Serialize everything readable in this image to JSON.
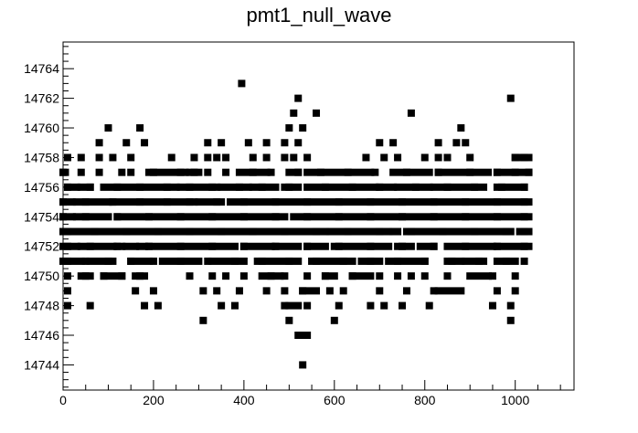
{
  "chart_data": {
    "type": "scatter",
    "title": "pmt1_null_wave",
    "xlabel": "",
    "ylabel": "",
    "xlim": [
      0,
      1130
    ],
    "ylim": [
      14742.3,
      14765.8
    ],
    "x_ticks": [
      0,
      200,
      400,
      600,
      800,
      1000
    ],
    "y_ticks": [
      14744,
      14746,
      14748,
      14750,
      14752,
      14754,
      14756,
      14758,
      14760,
      14762,
      14764
    ],
    "grid": false,
    "legend": false,
    "marker": "square",
    "marker_color": "#000000",
    "points": [
      {
        "x": 395,
        "y": 14763
      },
      {
        "x": 520,
        "y": 14762
      },
      {
        "x": 990,
        "y": 14762
      },
      {
        "x": 510,
        "y": 14761
      },
      {
        "x": 560,
        "y": 14761
      },
      {
        "x": 770,
        "y": 14761
      },
      {
        "x": 100,
        "y": 14760
      },
      {
        "x": 170,
        "y": 14760
      },
      {
        "x": 500,
        "y": 14760
      },
      {
        "x": 530,
        "y": 14760
      },
      {
        "x": 880,
        "y": 14760
      },
      {
        "x": 80,
        "y": 14759
      },
      {
        "x": 140,
        "y": 14759
      },
      {
        "x": 180,
        "y": 14759
      },
      {
        "x": 320,
        "y": 14759
      },
      {
        "x": 350,
        "y": 14759
      },
      {
        "x": 410,
        "y": 14759
      },
      {
        "x": 450,
        "y": 14759
      },
      {
        "x": 490,
        "y": 14759
      },
      {
        "x": 520,
        "y": 14759
      },
      {
        "x": 700,
        "y": 14759
      },
      {
        "x": 730,
        "y": 14759
      },
      {
        "x": 830,
        "y": 14759
      },
      {
        "x": 870,
        "y": 14759
      },
      {
        "x": 890,
        "y": 14759
      },
      {
        "x": 10,
        "y": 14758
      },
      {
        "x": 40,
        "y": 14758
      },
      {
        "x": 80,
        "y": 14758
      },
      {
        "x": 110,
        "y": 14758
      },
      {
        "x": 150,
        "y": 14758
      },
      {
        "x": 240,
        "y": 14758
      },
      {
        "x": 290,
        "y": 14758
      },
      {
        "x": 320,
        "y": 14758
      },
      {
        "x": 340,
        "y": 14758
      },
      {
        "x": 360,
        "y": 14758
      },
      {
        "x": 420,
        "y": 14758
      },
      {
        "x": 450,
        "y": 14758
      },
      {
        "x": 490,
        "y": 14758
      },
      {
        "x": 510,
        "y": 14758
      },
      {
        "x": 540,
        "y": 14758
      },
      {
        "x": 670,
        "y": 14758
      },
      {
        "x": 710,
        "y": 14758
      },
      {
        "x": 740,
        "y": 14758
      },
      {
        "x": 800,
        "y": 14758
      },
      {
        "x": 830,
        "y": 14758
      },
      {
        "x": 850,
        "y": 14758
      },
      {
        "x": 900,
        "y": 14758
      },
      {
        "x": 1000,
        "y": 14758
      },
      {
        "x": 1020,
        "y": 14758
      },
      {
        "x": 0,
        "y": 14757
      },
      {
        "x": 40,
        "y": 14757
      },
      {
        "x": 80,
        "y": 14757
      },
      {
        "x": 130,
        "y": 14757
      },
      {
        "x": 150,
        "y": 14757
      },
      {
        "x": 200,
        "y": 14757
      },
      {
        "x": 260,
        "y": 14757
      },
      {
        "x": 290,
        "y": 14757
      },
      {
        "x": 320,
        "y": 14757
      },
      {
        "x": 360,
        "y": 14757
      },
      {
        "x": 420,
        "y": 14757
      },
      {
        "x": 460,
        "y": 14757
      },
      {
        "x": 520,
        "y": 14757
      },
      {
        "x": 570,
        "y": 14757
      },
      {
        "x": 630,
        "y": 14757
      },
      {
        "x": 690,
        "y": 14757
      },
      {
        "x": 760,
        "y": 14757
      },
      {
        "x": 830,
        "y": 14757
      },
      {
        "x": 900,
        "y": 14757
      },
      {
        "x": 960,
        "y": 14757
      },
      {
        "x": 1000,
        "y": 14757
      },
      {
        "x": 1030,
        "y": 14757
      },
      {
        "x": 10,
        "y": 14756
      },
      {
        "x": 60,
        "y": 14756
      },
      {
        "x": 120,
        "y": 14756
      },
      {
        "x": 170,
        "y": 14756
      },
      {
        "x": 230,
        "y": 14756
      },
      {
        "x": 280,
        "y": 14756
      },
      {
        "x": 330,
        "y": 14756
      },
      {
        "x": 390,
        "y": 14756
      },
      {
        "x": 440,
        "y": 14756
      },
      {
        "x": 500,
        "y": 14756
      },
      {
        "x": 580,
        "y": 14756
      },
      {
        "x": 640,
        "y": 14756
      },
      {
        "x": 700,
        "y": 14756
      },
      {
        "x": 780,
        "y": 14756
      },
      {
        "x": 850,
        "y": 14756
      },
      {
        "x": 910,
        "y": 14756
      },
      {
        "x": 970,
        "y": 14756
      },
      {
        "x": 1020,
        "y": 14756
      },
      {
        "x": 0,
        "y": 14755
      },
      {
        "x": 50,
        "y": 14755
      },
      {
        "x": 110,
        "y": 14755
      },
      {
        "x": 170,
        "y": 14755
      },
      {
        "x": 230,
        "y": 14755
      },
      {
        "x": 280,
        "y": 14755
      },
      {
        "x": 340,
        "y": 14755
      },
      {
        "x": 400,
        "y": 14755
      },
      {
        "x": 470,
        "y": 14755
      },
      {
        "x": 540,
        "y": 14755
      },
      {
        "x": 610,
        "y": 14755
      },
      {
        "x": 680,
        "y": 14755
      },
      {
        "x": 750,
        "y": 14755
      },
      {
        "x": 820,
        "y": 14755
      },
      {
        "x": 890,
        "y": 14755
      },
      {
        "x": 960,
        "y": 14755
      },
      {
        "x": 1020,
        "y": 14755
      },
      {
        "x": 0,
        "y": 14754
      },
      {
        "x": 50,
        "y": 14754
      },
      {
        "x": 120,
        "y": 14754
      },
      {
        "x": 190,
        "y": 14754
      },
      {
        "x": 260,
        "y": 14754
      },
      {
        "x": 330,
        "y": 14754
      },
      {
        "x": 400,
        "y": 14754
      },
      {
        "x": 470,
        "y": 14754
      },
      {
        "x": 540,
        "y": 14754
      },
      {
        "x": 610,
        "y": 14754
      },
      {
        "x": 680,
        "y": 14754
      },
      {
        "x": 750,
        "y": 14754
      },
      {
        "x": 820,
        "y": 14754
      },
      {
        "x": 890,
        "y": 14754
      },
      {
        "x": 960,
        "y": 14754
      },
      {
        "x": 1020,
        "y": 14754
      },
      {
        "x": 10,
        "y": 14753
      },
      {
        "x": 70,
        "y": 14753
      },
      {
        "x": 140,
        "y": 14753
      },
      {
        "x": 210,
        "y": 14753
      },
      {
        "x": 280,
        "y": 14753
      },
      {
        "x": 350,
        "y": 14753
      },
      {
        "x": 420,
        "y": 14753
      },
      {
        "x": 490,
        "y": 14753
      },
      {
        "x": 560,
        "y": 14753
      },
      {
        "x": 630,
        "y": 14753
      },
      {
        "x": 700,
        "y": 14753
      },
      {
        "x": 770,
        "y": 14753
      },
      {
        "x": 840,
        "y": 14753
      },
      {
        "x": 910,
        "y": 14753
      },
      {
        "x": 980,
        "y": 14753
      },
      {
        "x": 1020,
        "y": 14753
      },
      {
        "x": 10,
        "y": 14752
      },
      {
        "x": 60,
        "y": 14752
      },
      {
        "x": 120,
        "y": 14752
      },
      {
        "x": 190,
        "y": 14752
      },
      {
        "x": 260,
        "y": 14752
      },
      {
        "x": 330,
        "y": 14752
      },
      {
        "x": 400,
        "y": 14752
      },
      {
        "x": 470,
        "y": 14752
      },
      {
        "x": 540,
        "y": 14752
      },
      {
        "x": 610,
        "y": 14752
      },
      {
        "x": 680,
        "y": 14752
      },
      {
        "x": 750,
        "y": 14752
      },
      {
        "x": 820,
        "y": 14752
      },
      {
        "x": 890,
        "y": 14752
      },
      {
        "x": 960,
        "y": 14752
      },
      {
        "x": 1020,
        "y": 14752
      },
      {
        "x": 10,
        "y": 14751
      },
      {
        "x": 50,
        "y": 14751
      },
      {
        "x": 100,
        "y": 14751
      },
      {
        "x": 150,
        "y": 14751
      },
      {
        "x": 200,
        "y": 14751
      },
      {
        "x": 260,
        "y": 14751
      },
      {
        "x": 320,
        "y": 14751
      },
      {
        "x": 380,
        "y": 14751
      },
      {
        "x": 440,
        "y": 14751
      },
      {
        "x": 500,
        "y": 14751
      },
      {
        "x": 560,
        "y": 14751
      },
      {
        "x": 620,
        "y": 14751
      },
      {
        "x": 680,
        "y": 14751
      },
      {
        "x": 740,
        "y": 14751
      },
      {
        "x": 800,
        "y": 14751
      },
      {
        "x": 860,
        "y": 14751
      },
      {
        "x": 920,
        "y": 14751
      },
      {
        "x": 980,
        "y": 14751
      },
      {
        "x": 1020,
        "y": 14751
      },
      {
        "x": 10,
        "y": 14750
      },
      {
        "x": 50,
        "y": 14750
      },
      {
        "x": 90,
        "y": 14750
      },
      {
        "x": 130,
        "y": 14750
      },
      {
        "x": 170,
        "y": 14750
      },
      {
        "x": 280,
        "y": 14750
      },
      {
        "x": 330,
        "y": 14750
      },
      {
        "x": 360,
        "y": 14750
      },
      {
        "x": 400,
        "y": 14750
      },
      {
        "x": 460,
        "y": 14750
      },
      {
        "x": 490,
        "y": 14750
      },
      {
        "x": 540,
        "y": 14750
      },
      {
        "x": 580,
        "y": 14750
      },
      {
        "x": 640,
        "y": 14750
      },
      {
        "x": 700,
        "y": 14750
      },
      {
        "x": 740,
        "y": 14750
      },
      {
        "x": 770,
        "y": 14750
      },
      {
        "x": 800,
        "y": 14750
      },
      {
        "x": 850,
        "y": 14750
      },
      {
        "x": 950,
        "y": 14750
      },
      {
        "x": 1000,
        "y": 14750
      },
      {
        "x": 10,
        "y": 14749
      },
      {
        "x": 160,
        "y": 14749
      },
      {
        "x": 200,
        "y": 14749
      },
      {
        "x": 310,
        "y": 14749
      },
      {
        "x": 340,
        "y": 14749
      },
      {
        "x": 390,
        "y": 14749
      },
      {
        "x": 450,
        "y": 14749
      },
      {
        "x": 490,
        "y": 14749
      },
      {
        "x": 530,
        "y": 14749
      },
      {
        "x": 590,
        "y": 14749
      },
      {
        "x": 620,
        "y": 14749
      },
      {
        "x": 700,
        "y": 14749
      },
      {
        "x": 760,
        "y": 14749
      },
      {
        "x": 820,
        "y": 14749
      },
      {
        "x": 960,
        "y": 14749
      },
      {
        "x": 1000,
        "y": 14749
      },
      {
        "x": 10,
        "y": 14748
      },
      {
        "x": 60,
        "y": 14748
      },
      {
        "x": 180,
        "y": 14748
      },
      {
        "x": 210,
        "y": 14748
      },
      {
        "x": 350,
        "y": 14748
      },
      {
        "x": 380,
        "y": 14748
      },
      {
        "x": 490,
        "y": 14748
      },
      {
        "x": 540,
        "y": 14748
      },
      {
        "x": 610,
        "y": 14748
      },
      {
        "x": 680,
        "y": 14748
      },
      {
        "x": 710,
        "y": 14748
      },
      {
        "x": 750,
        "y": 14748
      },
      {
        "x": 810,
        "y": 14748
      },
      {
        "x": 950,
        "y": 14748
      },
      {
        "x": 990,
        "y": 14748
      },
      {
        "x": 310,
        "y": 14747
      },
      {
        "x": 500,
        "y": 14747
      },
      {
        "x": 600,
        "y": 14747
      },
      {
        "x": 990,
        "y": 14747
      },
      {
        "x": 530,
        "y": 14746
      },
      {
        "x": 530,
        "y": 14744
      }
    ],
    "segments": [
      {
        "y": 14758,
        "x0": 1000,
        "x1": 1030
      },
      {
        "y": 14757,
        "x0": 0,
        "x1": 5
      },
      {
        "y": 14757,
        "x0": 190,
        "x1": 270
      },
      {
        "y": 14757,
        "x0": 280,
        "x1": 300
      },
      {
        "y": 14757,
        "x0": 390,
        "x1": 450
      },
      {
        "y": 14757,
        "x0": 500,
        "x1": 520
      },
      {
        "y": 14757,
        "x0": 540,
        "x1": 680
      },
      {
        "y": 14757,
        "x0": 730,
        "x1": 810
      },
      {
        "y": 14757,
        "x0": 830,
        "x1": 940
      },
      {
        "y": 14757,
        "x0": 960,
        "x1": 1030
      },
      {
        "y": 14756,
        "x0": 10,
        "x1": 30
      },
      {
        "y": 14756,
        "x0": 40,
        "x1": 60
      },
      {
        "y": 14756,
        "x0": 90,
        "x1": 250
      },
      {
        "y": 14756,
        "x0": 260,
        "x1": 340
      },
      {
        "y": 14756,
        "x0": 350,
        "x1": 410
      },
      {
        "y": 14756,
        "x0": 420,
        "x1": 470
      },
      {
        "y": 14756,
        "x0": 490,
        "x1": 520
      },
      {
        "y": 14756,
        "x0": 540,
        "x1": 690
      },
      {
        "y": 14756,
        "x0": 700,
        "x1": 730
      },
      {
        "y": 14756,
        "x0": 740,
        "x1": 810
      },
      {
        "y": 14756,
        "x0": 820,
        "x1": 930
      },
      {
        "y": 14756,
        "x0": 960,
        "x1": 1020
      },
      {
        "y": 14755,
        "x0": 0,
        "x1": 20
      },
      {
        "y": 14755,
        "x0": 30,
        "x1": 100
      },
      {
        "y": 14755,
        "x0": 110,
        "x1": 290
      },
      {
        "y": 14755,
        "x0": 300,
        "x1": 350
      },
      {
        "y": 14755,
        "x0": 370,
        "x1": 1030
      },
      {
        "y": 14754,
        "x0": 0,
        "x1": 20
      },
      {
        "y": 14754,
        "x0": 30,
        "x1": 100
      },
      {
        "y": 14754,
        "x0": 120,
        "x1": 490
      },
      {
        "y": 14754,
        "x0": 510,
        "x1": 1030
      },
      {
        "y": 14753,
        "x0": 0,
        "x1": 580
      },
      {
        "y": 14753,
        "x0": 590,
        "x1": 720
      },
      {
        "y": 14753,
        "x0": 730,
        "x1": 740
      },
      {
        "y": 14753,
        "x0": 760,
        "x1": 990
      },
      {
        "y": 14753,
        "x0": 1010,
        "x1": 1030
      },
      {
        "y": 14752,
        "x0": 0,
        "x1": 30
      },
      {
        "y": 14752,
        "x0": 40,
        "x1": 110
      },
      {
        "y": 14752,
        "x0": 120,
        "x1": 130
      },
      {
        "y": 14752,
        "x0": 140,
        "x1": 160
      },
      {
        "y": 14752,
        "x0": 170,
        "x1": 180
      },
      {
        "y": 14752,
        "x0": 190,
        "x1": 380
      },
      {
        "y": 14752,
        "x0": 400,
        "x1": 460
      },
      {
        "y": 14752,
        "x0": 470,
        "x1": 520
      },
      {
        "y": 14752,
        "x0": 540,
        "x1": 580
      },
      {
        "y": 14752,
        "x0": 600,
        "x1": 720
      },
      {
        "y": 14752,
        "x0": 740,
        "x1": 770
      },
      {
        "y": 14752,
        "x0": 790,
        "x1": 820
      },
      {
        "y": 14752,
        "x0": 850,
        "x1": 950
      },
      {
        "y": 14752,
        "x0": 960,
        "x1": 1030
      },
      {
        "y": 14751,
        "x0": 0,
        "x1": 40
      },
      {
        "y": 14751,
        "x0": 60,
        "x1": 110
      },
      {
        "y": 14751,
        "x0": 150,
        "x1": 190
      },
      {
        "y": 14751,
        "x0": 220,
        "x1": 300
      },
      {
        "y": 14751,
        "x0": 330,
        "x1": 400
      },
      {
        "y": 14751,
        "x0": 430,
        "x1": 520
      },
      {
        "y": 14751,
        "x0": 550,
        "x1": 640
      },
      {
        "y": 14751,
        "x0": 660,
        "x1": 700
      },
      {
        "y": 14751,
        "x0": 720,
        "x1": 800
      },
      {
        "y": 14751,
        "x0": 850,
        "x1": 880
      },
      {
        "y": 14751,
        "x0": 890,
        "x1": 930
      },
      {
        "y": 14751,
        "x0": 960,
        "x1": 1000
      },
      {
        "y": 14750,
        "x0": 40,
        "x1": 60
      },
      {
        "y": 14750,
        "x0": 90,
        "x1": 130
      },
      {
        "y": 14750,
        "x0": 160,
        "x1": 180
      },
      {
        "y": 14750,
        "x0": 440,
        "x1": 480
      },
      {
        "y": 14750,
        "x0": 580,
        "x1": 600
      },
      {
        "y": 14750,
        "x0": 640,
        "x1": 680
      },
      {
        "y": 14750,
        "x0": 900,
        "x1": 940
      },
      {
        "y": 14749,
        "x0": 530,
        "x1": 560
      },
      {
        "y": 14749,
        "x0": 830,
        "x1": 880
      },
      {
        "y": 14748,
        "x0": 500,
        "x1": 520
      },
      {
        "y": 14746,
        "x0": 520,
        "x1": 540
      }
    ]
  }
}
